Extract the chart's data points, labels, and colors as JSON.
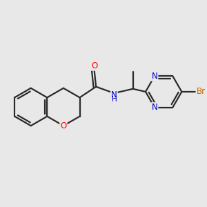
{
  "background_color": "#e8e8e8",
  "bond_color": "#2a2a2a",
  "bond_width": 1.6,
  "atom_colors": {
    "O": "#ff0000",
    "N": "#0000cc",
    "Br": "#cc6600",
    "C": "#2a2a2a"
  },
  "font_size": 8.5,
  "fig_size": [
    3.0,
    3.0
  ],
  "dpi": 100
}
